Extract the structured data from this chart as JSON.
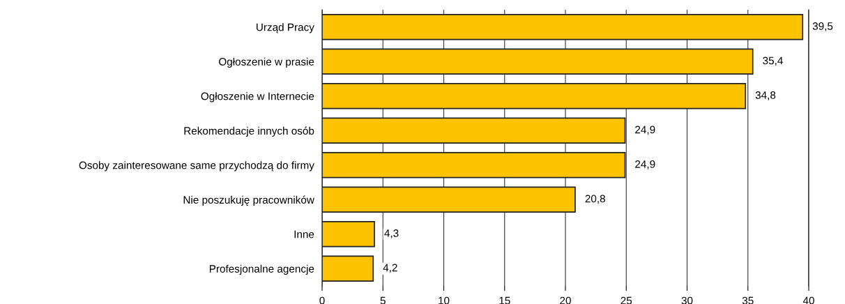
{
  "chart_data": {
    "type": "bar",
    "orientation": "horizontal",
    "categories": [
      "Urząd Pracy",
      "Ogłoszenie w prasie",
      "Ogłoszenie w Internecie",
      "Rekomendacje innych osób",
      "Osoby zainteresowane same przychodzą do firmy",
      "Nie poszukuję pracowników",
      "Inne",
      "Profesjonalne agencje"
    ],
    "values": [
      39.5,
      35.4,
      34.8,
      24.9,
      24.9,
      20.8,
      4.3,
      4.2
    ],
    "value_labels": [
      "39,5",
      "35,4",
      "34,8",
      "24,9",
      "24,9",
      "20,8",
      "4,3",
      "4,2"
    ],
    "color": "#fdc300",
    "xlim": [
      0,
      40
    ],
    "xticks": [
      0,
      5,
      10,
      15,
      20,
      25,
      30,
      35,
      40
    ],
    "grid": "x",
    "legend": false
  }
}
